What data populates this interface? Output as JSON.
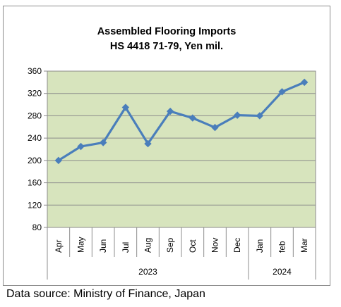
{
  "chart_data": {
    "type": "line",
    "title": [
      "Assembled Flooring Imports",
      "HS 4418 71-79, Yen mil."
    ],
    "xlabel": "",
    "ylabel": "",
    "categories": [
      "Apr",
      "May",
      "Jun",
      "Jul",
      "Aug",
      "Sep",
      "Oct",
      "Nov",
      "Dec",
      "Jan",
      "feb",
      "Mar"
    ],
    "groups": [
      {
        "label": "2023",
        "start": 0,
        "end": 8
      },
      {
        "label": "2024",
        "start": 9,
        "end": 11
      }
    ],
    "series": [
      {
        "values": [
          200,
          225,
          232,
          295,
          230,
          288,
          276,
          259,
          281,
          280,
          323,
          340
        ]
      }
    ],
    "ylim": [
      80,
      360
    ],
    "yticks": [
      80,
      120,
      160,
      200,
      240,
      280,
      320,
      360
    ],
    "grid": true,
    "colors": {
      "plot_background": "#d7e4bd",
      "line": "#4a7ebb",
      "grid": "#8c8c8c"
    }
  },
  "source_note": "Data source: Ministry of Finance, Japan"
}
